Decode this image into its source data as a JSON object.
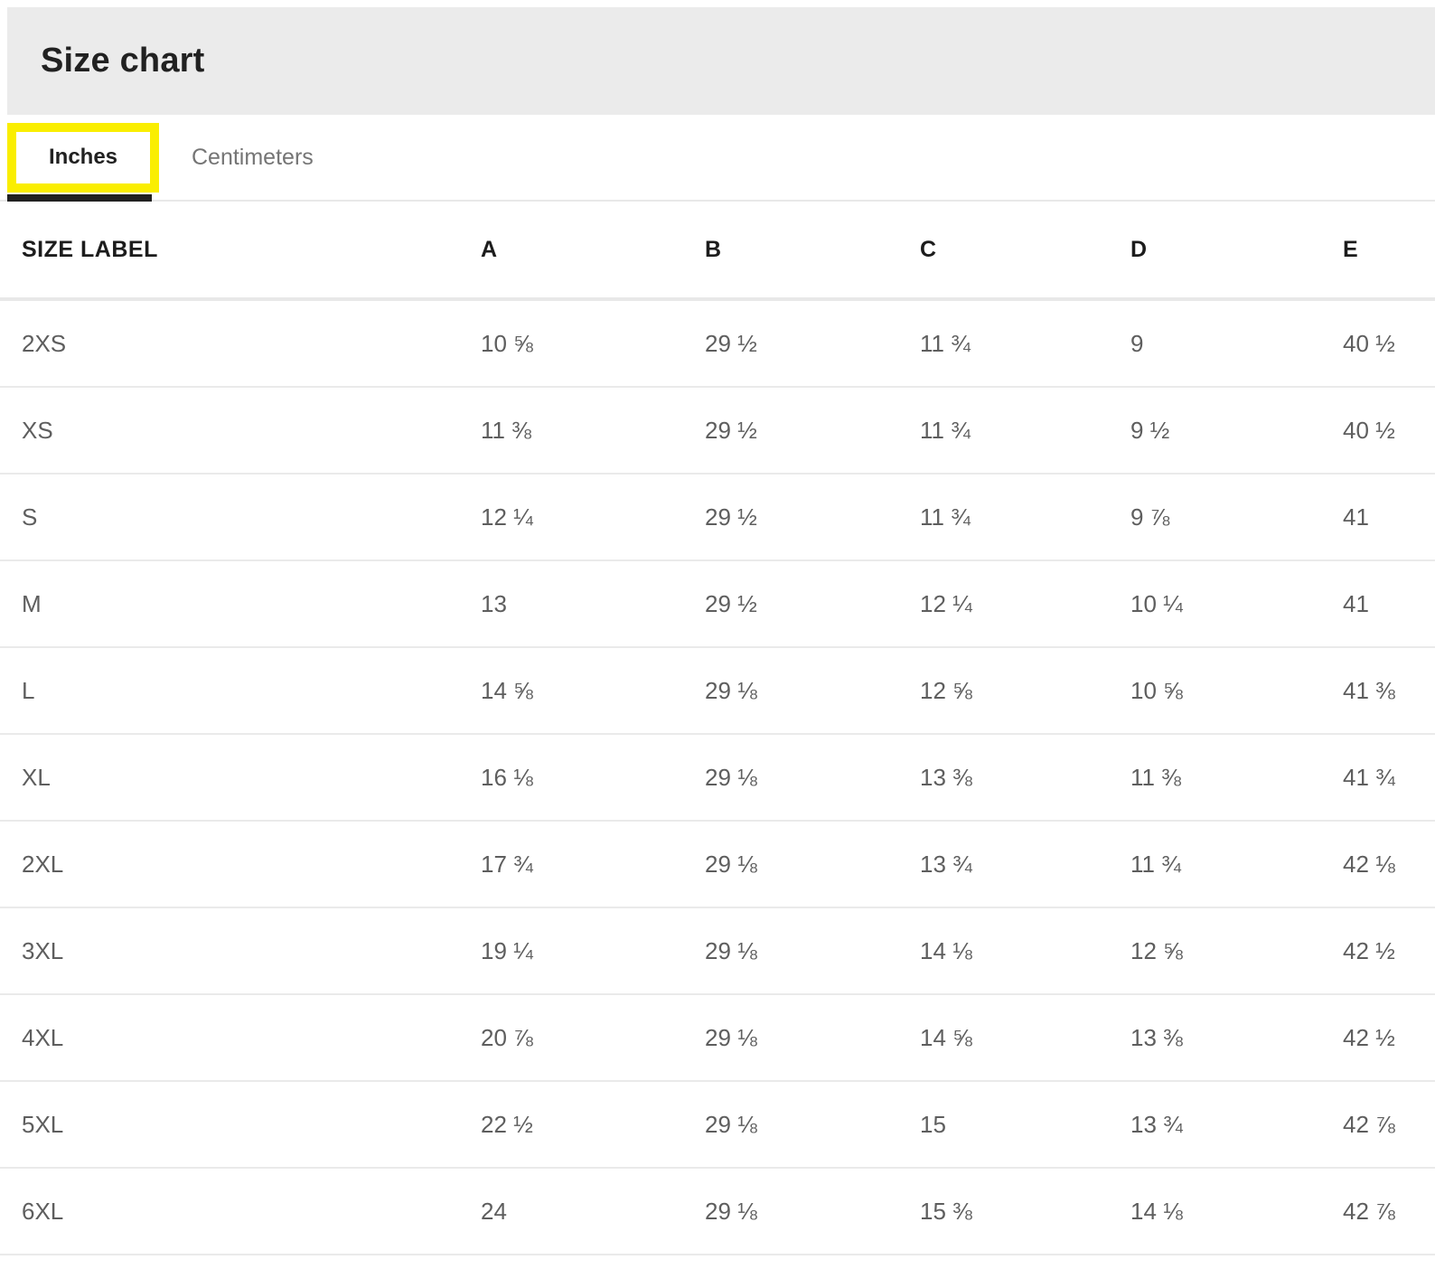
{
  "header": {
    "title": "Size chart"
  },
  "tabs": [
    {
      "label": "Inches",
      "active": true,
      "focused": true
    },
    {
      "label": "Centimeters",
      "active": false,
      "focused": false
    }
  ],
  "colors": {
    "header_bg": "#EBEBEB",
    "focus_ring_yellow": "#FAEE00",
    "active_tab_indicator": "#212121",
    "title_text": "#212121",
    "inactive_tab_text": "#757575",
    "cell_text": "#5E5E5E",
    "divider": "#E8E8E8"
  },
  "size_table": {
    "headers": [
      "SIZE LABEL",
      "A",
      "B",
      "C",
      "D",
      "E"
    ],
    "rows": [
      {
        "label": "2XS",
        "values": [
          "10 ⅝",
          "29 ½",
          "11 ¾",
          "9",
          "40 ½"
        ]
      },
      {
        "label": "XS",
        "values": [
          "11 ⅜",
          "29 ½",
          "11 ¾",
          "9 ½",
          "40 ½"
        ]
      },
      {
        "label": "S",
        "values": [
          "12 ¼",
          "29 ½",
          "11 ¾",
          "9 ⅞",
          "41"
        ]
      },
      {
        "label": "M",
        "values": [
          "13",
          "29 ½",
          "12 ¼",
          "10 ¼",
          "41"
        ]
      },
      {
        "label": "L",
        "values": [
          "14 ⅝",
          "29 ⅛",
          "12 ⅝",
          "10 ⅝",
          "41 ⅜"
        ]
      },
      {
        "label": "XL",
        "values": [
          "16 ⅛",
          "29 ⅛",
          "13 ⅜",
          "11 ⅜",
          "41 ¾"
        ]
      },
      {
        "label": "2XL",
        "values": [
          "17 ¾",
          "29 ⅛",
          "13 ¾",
          "11 ¾",
          "42 ⅛"
        ]
      },
      {
        "label": "3XL",
        "values": [
          "19 ¼",
          "29 ⅛",
          "14 ⅛",
          "12 ⅝",
          "42 ½"
        ]
      },
      {
        "label": "4XL",
        "values": [
          "20 ⅞",
          "29 ⅛",
          "14 ⅝",
          "13 ⅜",
          "42 ½"
        ]
      },
      {
        "label": "5XL",
        "values": [
          "22 ½",
          "29 ⅛",
          "15",
          "13 ¾",
          "42 ⅞"
        ]
      },
      {
        "label": "6XL",
        "values": [
          "24",
          "29 ⅛",
          "15 ⅜",
          "14 ⅛",
          "42 ⅞"
        ]
      }
    ]
  }
}
